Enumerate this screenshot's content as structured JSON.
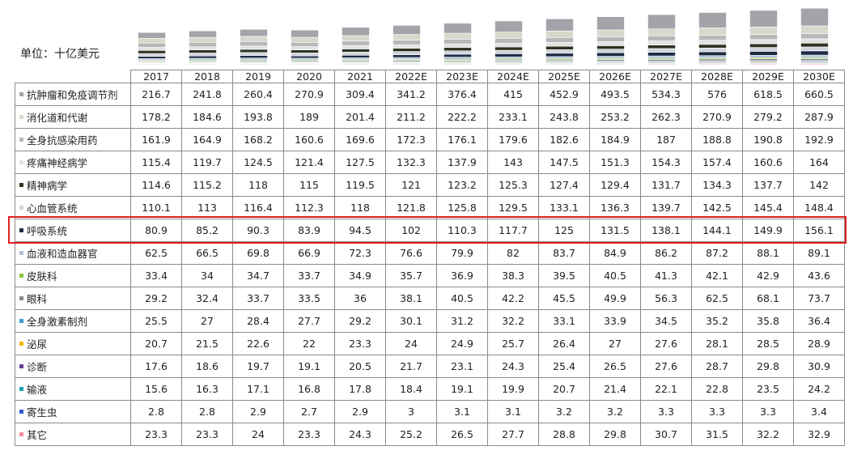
{
  "chart_data": {
    "type": "bar",
    "stacked": true,
    "unit_label": "单位：十亿美元",
    "categories": [
      "2017",
      "2018",
      "2019",
      "2020",
      "2021",
      "2022E",
      "2023E",
      "2024E",
      "2025E",
      "2026E",
      "2027E",
      "2028E",
      "2029E",
      "2030E"
    ],
    "series": [
      {
        "name": "抗肿瘤和免疫调节剂",
        "color": "#a3a3aa",
        "values": [
          216.7,
          241.8,
          260.4,
          270.9,
          309.4,
          341.2,
          376.4,
          415.0,
          452.9,
          493.5,
          534.3,
          576.0,
          618.5,
          660.5
        ]
      },
      {
        "name": "消化道和代谢",
        "color": "#d8d8cc",
        "values": [
          178.2,
          184.6,
          193.8,
          189.0,
          201.4,
          211.2,
          222.2,
          233.1,
          243.8,
          253.2,
          262.3,
          270.9,
          279.2,
          287.9
        ]
      },
      {
        "name": "全身抗感染用药",
        "color": "#b8b8b8",
        "values": [
          161.9,
          164.9,
          168.2,
          160.6,
          169.6,
          172.3,
          176.1,
          179.6,
          182.6,
          184.9,
          187.0,
          188.8,
          190.8,
          192.9
        ]
      },
      {
        "name": "疼痛神经病学",
        "color": "#e2e2e2",
        "values": [
          115.4,
          119.7,
          124.5,
          121.4,
          127.5,
          132.3,
          137.9,
          143.0,
          147.5,
          151.3,
          154.3,
          157.4,
          160.6,
          164.0
        ]
      },
      {
        "name": "精神病学",
        "color": "#2e3320",
        "values": [
          114.6,
          115.2,
          118.0,
          115.0,
          119.5,
          121.0,
          123.2,
          125.3,
          127.4,
          129.4,
          131.7,
          134.3,
          137.7,
          142.0
        ]
      },
      {
        "name": "心血管系统",
        "color": "#d0d4dc",
        "values": [
          110.1,
          113.0,
          116.4,
          112.3,
          118.0,
          121.8,
          125.8,
          129.5,
          133.1,
          136.3,
          139.7,
          142.5,
          145.4,
          148.4
        ]
      },
      {
        "name": "呼吸系统",
        "color": "#1f2a44",
        "highlighted": true,
        "values": [
          80.9,
          85.2,
          90.3,
          83.9,
          94.5,
          102.0,
          110.3,
          117.7,
          125.0,
          131.5,
          138.1,
          144.1,
          149.9,
          156.1
        ]
      },
      {
        "name": "血液和造血器官",
        "color": "#b4c4d8",
        "values": [
          62.5,
          66.5,
          69.8,
          66.9,
          72.3,
          76.6,
          79.9,
          82.0,
          83.7,
          84.9,
          86.2,
          87.2,
          88.1,
          89.1
        ]
      },
      {
        "name": "皮肤科",
        "color": "#8dc63f",
        "values": [
          33.4,
          34.0,
          34.7,
          33.7,
          34.9,
          35.7,
          36.9,
          38.3,
          39.5,
          40.5,
          41.3,
          42.1,
          42.9,
          43.6
        ]
      },
      {
        "name": "眼科",
        "color": "#8c8c8c",
        "values": [
          29.2,
          32.4,
          33.7,
          33.5,
          36.0,
          38.1,
          40.5,
          42.2,
          45.5,
          49.9,
          56.3,
          62.5,
          68.1,
          73.7
        ]
      },
      {
        "name": "全身激素制剂",
        "color": "#3c9ad6",
        "values": [
          25.5,
          27.0,
          28.4,
          27.7,
          29.2,
          30.1,
          31.2,
          32.2,
          33.1,
          33.9,
          34.5,
          35.2,
          35.8,
          36.4
        ]
      },
      {
        "name": "泌尿",
        "color": "#f7b500",
        "values": [
          20.7,
          21.5,
          22.6,
          22.0,
          23.3,
          24.0,
          24.9,
          25.7,
          26.4,
          27.0,
          27.6,
          28.1,
          28.5,
          28.9
        ]
      },
      {
        "name": "诊断",
        "color": "#6a3d9a",
        "values": [
          17.6,
          18.6,
          19.7,
          19.1,
          20.5,
          21.7,
          23.1,
          24.3,
          25.4,
          26.5,
          27.6,
          28.7,
          29.8,
          30.9
        ]
      },
      {
        "name": "输液",
        "color": "#1aa0b8",
        "values": [
          15.6,
          16.3,
          17.1,
          16.8,
          17.8,
          18.4,
          19.1,
          19.9,
          20.7,
          21.4,
          22.1,
          22.8,
          23.5,
          24.2
        ]
      },
      {
        "name": "寄生虫",
        "color": "#3355cc",
        "values": [
          2.8,
          2.8,
          2.9,
          2.7,
          2.9,
          3.0,
          3.1,
          3.1,
          3.2,
          3.2,
          3.3,
          3.3,
          3.3,
          3.4
        ]
      },
      {
        "name": "其它",
        "color": "#f08ca0",
        "values": [
          23.3,
          23.3,
          24.0,
          23.3,
          24.3,
          25.2,
          26.5,
          27.7,
          28.8,
          29.8,
          30.7,
          31.5,
          32.2,
          32.9
        ]
      }
    ]
  }
}
